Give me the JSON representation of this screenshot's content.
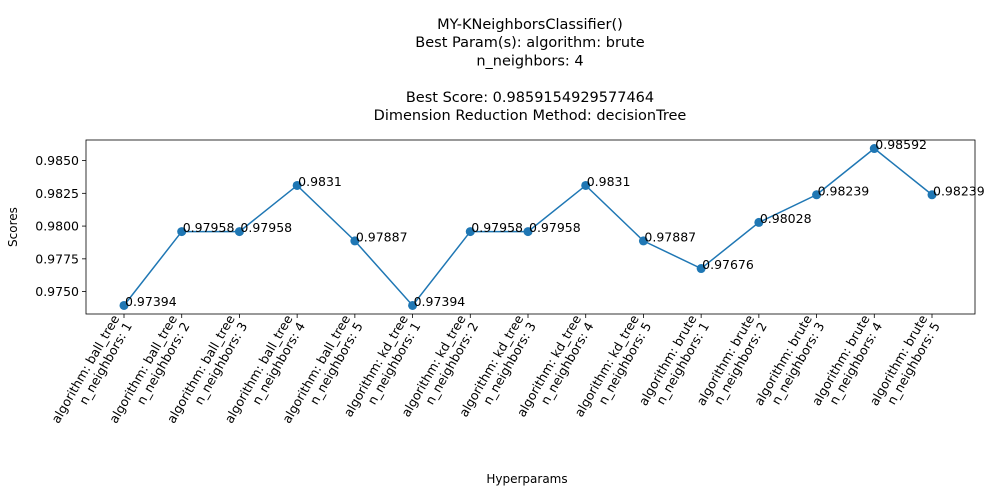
{
  "chart_data": {
    "type": "line",
    "title_lines": [
      "MY-KNeighborsClassifier()",
      "Best Param(s): algorithm: brute",
      "n_neighbors: 4",
      "",
      "Best Score: 0.9859154929577464",
      "Dimension Reduction Method: decisionTree"
    ],
    "xlabel": "Hyperparams",
    "ylabel": "Scores",
    "ylim": [
      0.97329,
      0.98657
    ],
    "yticks": [
      "0.9750",
      "0.9775",
      "0.9800",
      "0.9825",
      "0.9850"
    ],
    "grid": false,
    "line_color": "#1f77b4",
    "categories": [
      [
        "algorithm: ball_tree",
        "n_neighbors: 1"
      ],
      [
        "algorithm: ball_tree",
        "n_neighbors: 2"
      ],
      [
        "algorithm: ball_tree",
        "n_neighbors: 3"
      ],
      [
        "algorithm: ball_tree",
        "n_neighbors: 4"
      ],
      [
        "algorithm: ball_tree",
        "n_neighbors: 5"
      ],
      [
        "algorithm: kd_tree",
        "n_neighbors: 1"
      ],
      [
        "algorithm: kd_tree",
        "n_neighbors: 2"
      ],
      [
        "algorithm: kd_tree",
        "n_neighbors: 3"
      ],
      [
        "algorithm: kd_tree",
        "n_neighbors: 4"
      ],
      [
        "algorithm: kd_tree",
        "n_neighbors: 5"
      ],
      [
        "algorithm: brute",
        "n_neighbors: 1"
      ],
      [
        "algorithm: brute",
        "n_neighbors: 2"
      ],
      [
        "algorithm: brute",
        "n_neighbors: 3"
      ],
      [
        "algorithm: brute",
        "n_neighbors: 4"
      ],
      [
        "algorithm: brute",
        "n_neighbors: 5"
      ]
    ],
    "values": [
      0.97394,
      0.97958,
      0.97958,
      0.9831,
      0.97887,
      0.97394,
      0.97958,
      0.97958,
      0.9831,
      0.97887,
      0.97676,
      0.98028,
      0.98239,
      0.98592,
      0.98239
    ],
    "point_labels": [
      "0.97394",
      "0.97958",
      "0.97958",
      "0.9831",
      "0.97887",
      "0.97394",
      "0.97958",
      "0.97958",
      "0.9831",
      "0.97887",
      "0.97676",
      "0.98028",
      "0.98239",
      "0.98592",
      "0.98239"
    ]
  }
}
